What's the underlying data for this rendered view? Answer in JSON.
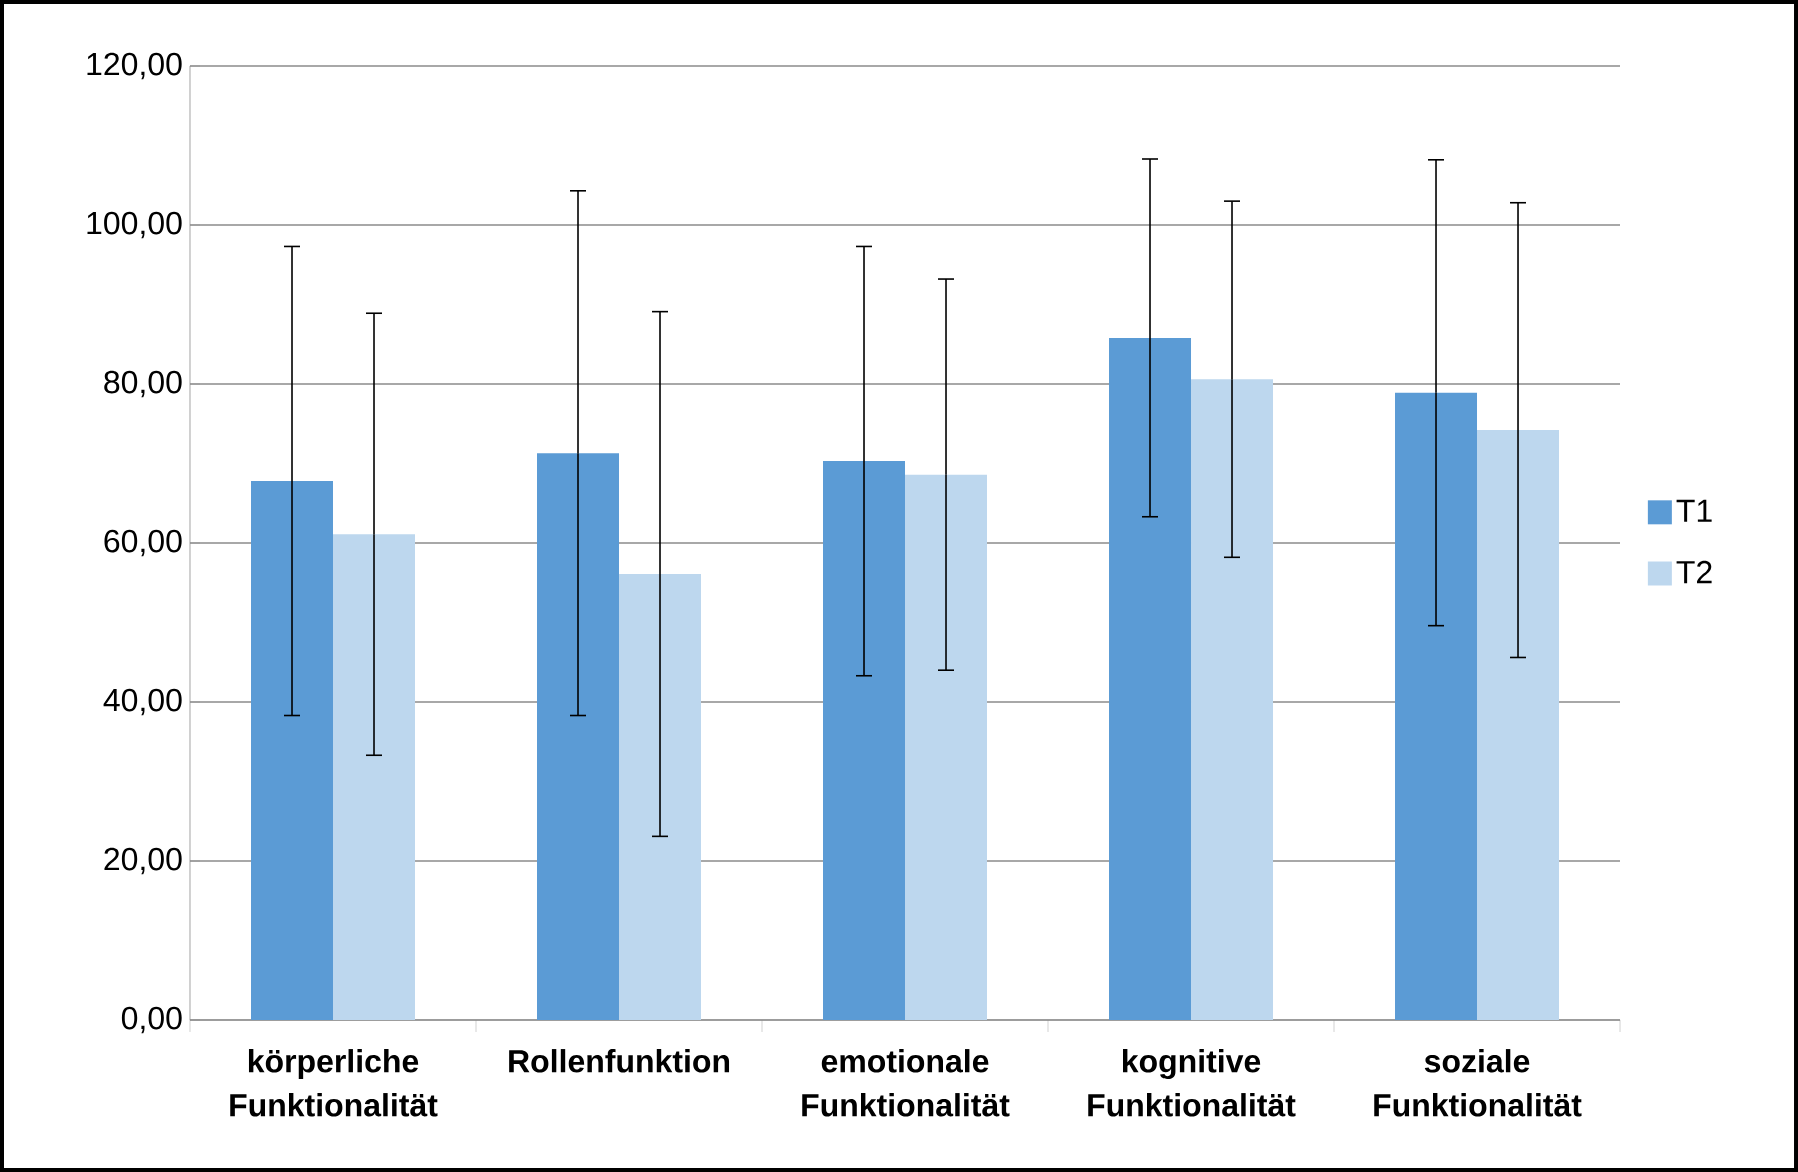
{
  "chart_data": {
    "type": "bar",
    "categories": [
      "körperliche Funktionalität",
      "Rollenfunktion",
      "emotionale Funktionalität",
      "kognitive Funktionalität",
      "soziale Funktionalität"
    ],
    "series": [
      {
        "name": "T1",
        "color": "#5b9bd5",
        "values": [
          67.8,
          71.3,
          70.3,
          85.8,
          78.9
        ],
        "errors": [
          29.5,
          33.0,
          27.0,
          22.5,
          29.3
        ]
      },
      {
        "name": "T2",
        "color": "#bdd7ee",
        "values": [
          61.1,
          56.1,
          68.6,
          80.6,
          74.2
        ],
        "errors": [
          27.8,
          33.0,
          24.6,
          22.4,
          28.6
        ]
      }
    ],
    "ylim": [
      0,
      120
    ],
    "yticks": [
      {
        "value": 0,
        "label": "0,00"
      },
      {
        "value": 20,
        "label": "20,00"
      },
      {
        "value": 40,
        "label": "40,00"
      },
      {
        "value": 60,
        "label": "60,00"
      },
      {
        "value": 80,
        "label": "80,00"
      },
      {
        "value": 100,
        "label": "100,00"
      },
      {
        "value": 120,
        "label": "120,00"
      }
    ],
    "grid": "y",
    "legend": "right"
  }
}
